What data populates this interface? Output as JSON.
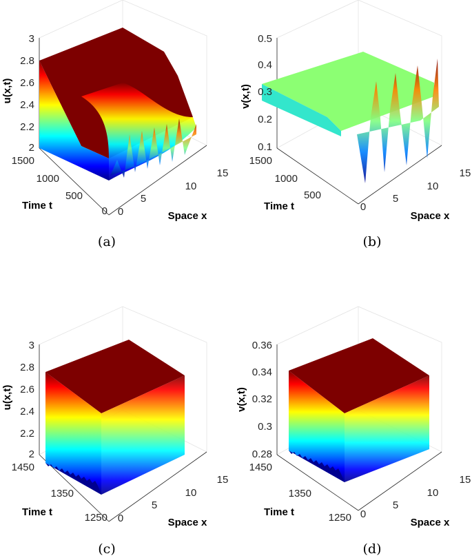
{
  "colors": {
    "colormap": "jet",
    "grid": "#e3e3e3",
    "axis": "#262626",
    "background": "#ffffff"
  },
  "chart_data": [
    {
      "type": "surface",
      "caption": "(a)",
      "xlabel": "Space x",
      "ylabel": "Time t",
      "zlabel": "u(x,t)",
      "xlim": [
        0,
        15
      ],
      "ylim": [
        0,
        1500
      ],
      "zlim": [
        2,
        3
      ],
      "xticks": [
        "0",
        "5",
        "10",
        "15"
      ],
      "yticks": [
        "0",
        "500",
        "1000",
        "1500"
      ],
      "zticks": [
        "2",
        "2.2",
        "2.4",
        "2.6",
        "2.8",
        "3"
      ],
      "grid": true,
      "plateau_level": 2.8,
      "oscillation_range": [
        2.05,
        2.3
      ],
      "oscillation_peaks": 5
    },
    {
      "type": "surface",
      "caption": "(b)",
      "xlabel": "Space x",
      "ylabel": "Time t",
      "zlabel": "v(x,t)",
      "xlim": [
        0,
        15
      ],
      "ylim": [
        0,
        1500
      ],
      "zlim": [
        0.1,
        0.5
      ],
      "xticks": [
        "0",
        "5",
        "10",
        "15"
      ],
      "yticks": [
        "500",
        "1000",
        "1500"
      ],
      "zticks": [
        "0.1",
        "0.2",
        "0.3",
        "0.4",
        "0.5"
      ],
      "grid": true,
      "plateau_level": 0.33,
      "oscillation_range": [
        0.06,
        0.42
      ],
      "oscillation_peaks": 5
    },
    {
      "type": "surface",
      "caption": "(c)",
      "xlabel": "Space x",
      "ylabel": "Time t",
      "zlabel": "u(x,t)",
      "xlim": [
        0,
        15
      ],
      "ylim": [
        1250,
        1450
      ],
      "zlim": [
        2,
        3
      ],
      "xticks": [
        "0",
        "5",
        "10",
        "15"
      ],
      "yticks": [
        "1250",
        "1350",
        "1450"
      ],
      "zticks": [
        "2",
        "2.2",
        "2.4",
        "2.6",
        "2.8",
        "3"
      ],
      "grid": true,
      "oscillation_range": [
        2.0,
        2.73
      ],
      "oscillation_peaks": 5
    },
    {
      "type": "surface",
      "caption": "(d)",
      "xlabel": "Space x",
      "ylabel": "Time t",
      "zlabel": "v(x,t)",
      "xlim": [
        0,
        15
      ],
      "ylim": [
        1250,
        1450
      ],
      "zlim": [
        0.28,
        0.36
      ],
      "xticks": [
        "0",
        "5",
        "10",
        "15"
      ],
      "yticks": [
        "1250",
        "1350",
        "1450"
      ],
      "zticks": [
        "0.28",
        "0.3",
        "0.32",
        "0.34",
        "0.36"
      ],
      "grid": true,
      "oscillation_range": [
        0.28,
        0.34
      ],
      "oscillation_peaks": 5
    }
  ]
}
